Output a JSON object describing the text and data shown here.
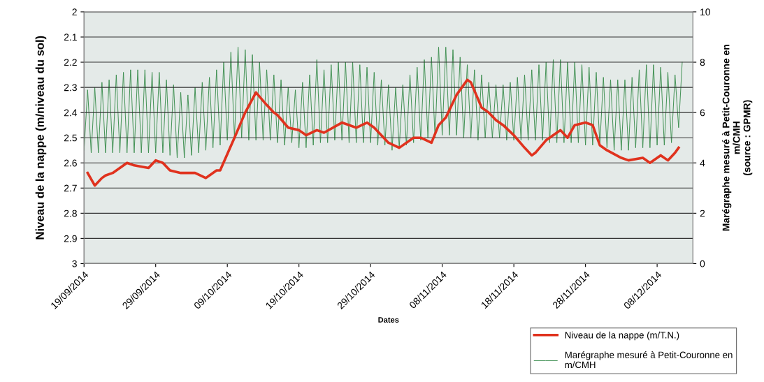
{
  "chart_data": {
    "type": "line",
    "xlabel": "Dates",
    "ylabel": "Niveau de la nappe (m/niveau du sol)",
    "y2label": "Marégraphe mesuré à Petit-Couronne en\nm/CMH\n(source : GPMR)",
    "xlim": [
      "2014-09-19",
      "2014-12-13"
    ],
    "xticks": [
      {
        "value": "2014-09-19",
        "label": "19/09/2014"
      },
      {
        "value": "2014-09-29",
        "label": "29/09/2014"
      },
      {
        "value": "2014-10-09",
        "label": "09/10/2014"
      },
      {
        "value": "2014-10-19",
        "label": "19/10/2014"
      },
      {
        "value": "2014-10-29",
        "label": "29/10/2014"
      },
      {
        "value": "2014-11-08",
        "label": "08/11/2014"
      },
      {
        "value": "2014-11-18",
        "label": "18/11/2014"
      },
      {
        "value": "2014-11-28",
        "label": "28/11/2014"
      },
      {
        "value": "2014-12-08",
        "label": "08/12/2014"
      }
    ],
    "ylim": [
      3,
      2
    ],
    "yticks": [
      2,
      2.1,
      2.2,
      2.3,
      2.4,
      2.5,
      2.6,
      2.7,
      2.8,
      2.9,
      3
    ],
    "y2lim": [
      0,
      10
    ],
    "y2ticks": [
      0,
      2,
      4,
      6,
      8,
      10
    ],
    "grid": "y",
    "legend": "bottom right",
    "marker": "none",
    "line_style": "solid",
    "series": [
      {
        "name": "Niveau de la nappe (m/T.N.)",
        "color": "#e0321e",
        "x": [
          "2014-09-19T12:00",
          "2014-09-20T12:00",
          "2014-09-21T12:00",
          "2014-09-22",
          "2014-09-23",
          "2014-09-25",
          "2014-09-26",
          "2014-09-28",
          "2014-09-29",
          "2014-09-30",
          "2014-10-01",
          "2014-10-02T12:00",
          "2014-10-04T12:00",
          "2014-10-06",
          "2014-10-06T12:00",
          "2014-10-07T12:00",
          "2014-10-08",
          "2014-10-10",
          "2014-10-11T12:00",
          "2014-10-13",
          "2014-10-14T12:00",
          "2014-10-15T12:00",
          "2014-10-16",
          "2014-10-17T12:00",
          "2014-10-19",
          "2014-10-20",
          "2014-10-21T12:00",
          "2014-10-22T12:00",
          "2014-10-25",
          "2014-10-27",
          "2014-10-28T12:00",
          "2014-10-29T12:00",
          "2014-10-31T12:00",
          "2014-11-02",
          "2014-11-04",
          "2014-11-05",
          "2014-11-06T12:00",
          "2014-11-07T12:00",
          "2014-11-08T12:00",
          "2014-11-10",
          "2014-11-11T12:00",
          "2014-11-12",
          "2014-11-13T12:00",
          "2014-11-14T12:00",
          "2014-11-15T12:00",
          "2014-11-16T12:00",
          "2014-11-18",
          "2014-11-19T12:00",
          "2014-11-20T12:00",
          "2014-11-21",
          "2014-11-22T12:00",
          "2014-11-24",
          "2014-11-24T12:00",
          "2014-11-25T12:00",
          "2014-11-26T12:00",
          "2014-11-28",
          "2014-11-29",
          "2014-11-30",
          "2014-12-01",
          "2014-12-03",
          "2014-12-04",
          "2014-12-06",
          "2014-12-07",
          "2014-12-08T12:00",
          "2014-12-09T12:00",
          "2014-12-10T12:00",
          "2014-12-11"
        ],
        "values": [
          2.64,
          2.69,
          2.66,
          2.65,
          2.64,
          2.6,
          2.61,
          2.62,
          2.59,
          2.6,
          2.63,
          2.64,
          2.64,
          2.66,
          2.65,
          2.63,
          2.63,
          2.5,
          2.4,
          2.32,
          2.37,
          2.4,
          2.41,
          2.46,
          2.47,
          2.49,
          2.47,
          2.48,
          2.44,
          2.46,
          2.44,
          2.46,
          2.52,
          2.54,
          2.5,
          2.5,
          2.52,
          2.45,
          2.42,
          2.33,
          2.27,
          2.28,
          2.38,
          2.4,
          2.43,
          2.45,
          2.49,
          2.54,
          2.57,
          2.56,
          2.51,
          2.48,
          2.47,
          2.5,
          2.45,
          2.44,
          2.45,
          2.53,
          2.55,
          2.58,
          2.59,
          2.58,
          2.6,
          2.57,
          2.59,
          2.56,
          2.54
        ]
      },
      {
        "name": "Marégraphe mesuré à Petit-Couronne en\nm/CMH",
        "color": "#3f8f52",
        "axis": "y2",
        "x": [
          "2014-09-19",
          "2014-09-19T12:00",
          "2014-09-20",
          "2014-09-20T12:00",
          "2014-09-21",
          "2014-09-21T12:00",
          "2014-09-22",
          "2014-09-22T12:00",
          "2014-09-23",
          "2014-09-23T12:00",
          "2014-09-24",
          "2014-09-24T12:00",
          "2014-09-25",
          "2014-09-25T12:00",
          "2014-09-26",
          "2014-09-26T12:00",
          "2014-09-27",
          "2014-09-27T12:00",
          "2014-09-28",
          "2014-09-28T12:00",
          "2014-09-29",
          "2014-09-29T12:00",
          "2014-09-30",
          "2014-09-30T12:00",
          "2014-10-01",
          "2014-10-01T12:00",
          "2014-10-02",
          "2014-10-02T12:00",
          "2014-10-03",
          "2014-10-03T12:00",
          "2014-10-04",
          "2014-10-04T12:00",
          "2014-10-05",
          "2014-10-05T12:00",
          "2014-10-06",
          "2014-10-06T12:00",
          "2014-10-07",
          "2014-10-07T12:00",
          "2014-10-08",
          "2014-10-08T12:00",
          "2014-10-09",
          "2014-10-09T12:00",
          "2014-10-10",
          "2014-10-10T12:00",
          "2014-10-11",
          "2014-10-11T12:00",
          "2014-10-12",
          "2014-10-12T12:00",
          "2014-10-13",
          "2014-10-13T12:00",
          "2014-10-14",
          "2014-10-14T12:00",
          "2014-10-15",
          "2014-10-15T12:00",
          "2014-10-16",
          "2014-10-16T12:00",
          "2014-10-17",
          "2014-10-17T12:00",
          "2014-10-18",
          "2014-10-18T12:00",
          "2014-10-19",
          "2014-10-19T12:00",
          "2014-10-20",
          "2014-10-20T12:00",
          "2014-10-21",
          "2014-10-21T12:00",
          "2014-10-22",
          "2014-10-22T12:00",
          "2014-10-23",
          "2014-10-23T12:00",
          "2014-10-24",
          "2014-10-24T12:00",
          "2014-10-25",
          "2014-10-25T12:00",
          "2014-10-26",
          "2014-10-26T12:00",
          "2014-10-27",
          "2014-10-27T12:00",
          "2014-10-28",
          "2014-10-28T12:00",
          "2014-10-29",
          "2014-10-29T12:00",
          "2014-10-30",
          "2014-10-30T12:00",
          "2014-10-31",
          "2014-10-31T12:00",
          "2014-11-01",
          "2014-11-01T12:00",
          "2014-11-02",
          "2014-11-02T12:00",
          "2014-11-03",
          "2014-11-03T12:00",
          "2014-11-04",
          "2014-11-04T12:00",
          "2014-11-05",
          "2014-11-05T12:00",
          "2014-11-06",
          "2014-11-06T12:00",
          "2014-11-07",
          "2014-11-07T12:00",
          "2014-11-08",
          "2014-11-08T12:00",
          "2014-11-09",
          "2014-11-09T12:00",
          "2014-11-10",
          "2014-11-10T12:00",
          "2014-11-11",
          "2014-11-11T12:00",
          "2014-11-12",
          "2014-11-12T12:00",
          "2014-11-13",
          "2014-11-13T12:00",
          "2014-11-14",
          "2014-11-14T12:00",
          "2014-11-15",
          "2014-11-15T12:00",
          "2014-11-16",
          "2014-11-16T12:00",
          "2014-11-17",
          "2014-11-17T12:00",
          "2014-11-18",
          "2014-11-18T12:00",
          "2014-11-19",
          "2014-11-19T12:00",
          "2014-11-20",
          "2014-11-20T12:00",
          "2014-11-21",
          "2014-11-21T12:00",
          "2014-11-22",
          "2014-11-22T12:00",
          "2014-11-23",
          "2014-11-23T12:00",
          "2014-11-24",
          "2014-11-24T12:00",
          "2014-11-25",
          "2014-11-25T12:00",
          "2014-11-26",
          "2014-11-26T12:00",
          "2014-11-27",
          "2014-11-27T12:00",
          "2014-11-28",
          "2014-11-28T12:00",
          "2014-11-29",
          "2014-11-29T12:00",
          "2014-11-30",
          "2014-11-30T12:00",
          "2014-12-01",
          "2014-12-01T12:00",
          "2014-12-02",
          "2014-12-02T12:00",
          "2014-12-03",
          "2014-12-03T12:00",
          "2014-12-04",
          "2014-12-04T12:00",
          "2014-12-05",
          "2014-12-05T12:00",
          "2014-12-06",
          "2014-12-06T12:00",
          "2014-12-07",
          "2014-12-07T12:00",
          "2014-12-08",
          "2014-12-08T12:00",
          "2014-12-09",
          "2014-12-09T12:00",
          "2014-12-10",
          "2014-12-10T12:00",
          "2014-12-11",
          "2014-12-11T12:00"
        ],
        "values": [
          4.5,
          6.9,
          4.4,
          7.0,
          4.4,
          7.2,
          4.4,
          7.3,
          4.4,
          7.5,
          4.4,
          7.6,
          4.4,
          7.7,
          4.4,
          7.7,
          4.4,
          7.7,
          4.4,
          7.6,
          4.4,
          7.6,
          4.4,
          7.3,
          4.3,
          7.1,
          4.2,
          6.8,
          4.2,
          6.7,
          4.3,
          7.0,
          4.4,
          7.2,
          4.5,
          7.4,
          4.6,
          7.7,
          4.7,
          8.0,
          4.9,
          8.4,
          5.0,
          8.6,
          5.0,
          8.5,
          4.9,
          8.3,
          4.9,
          8.0,
          4.9,
          7.7,
          4.9,
          7.5,
          4.8,
          7.3,
          4.7,
          7.0,
          4.8,
          6.9,
          4.6,
          7.2,
          4.6,
          7.5,
          4.7,
          8.1,
          4.8,
          7.7,
          4.8,
          7.9,
          4.9,
          8.0,
          4.9,
          8.0,
          4.8,
          8.0,
          4.8,
          7.9,
          4.8,
          7.8,
          4.8,
          7.6,
          4.7,
          7.3,
          4.7,
          7.1,
          4.5,
          7.0,
          4.6,
          7.1,
          4.7,
          7.5,
          4.8,
          7.8,
          4.9,
          8.1,
          5.0,
          8.2,
          5.0,
          8.6,
          5.1,
          8.6,
          5.1,
          8.5,
          5.1,
          8.2,
          5.0,
          7.9,
          5.0,
          7.7,
          4.9,
          7.5,
          5.0,
          7.2,
          5.0,
          7.1,
          5.0,
          7.1,
          4.9,
          7.2,
          4.9,
          7.4,
          4.9,
          7.5,
          4.9,
          7.7,
          4.9,
          7.9,
          4.9,
          8.0,
          4.8,
          8.1,
          4.8,
          8.1,
          4.8,
          8.0,
          4.8,
          8.0,
          4.8,
          7.9,
          4.7,
          7.8,
          4.7,
          7.6,
          4.7,
          7.4,
          4.6,
          7.3,
          4.5,
          7.3,
          4.5,
          7.3,
          4.5,
          7.4,
          4.6,
          7.7,
          4.6,
          7.9,
          4.6,
          7.9,
          4.7,
          7.8,
          4.7,
          7.6,
          4.8,
          7.5,
          5.4,
          8.0
        ]
      }
    ]
  }
}
